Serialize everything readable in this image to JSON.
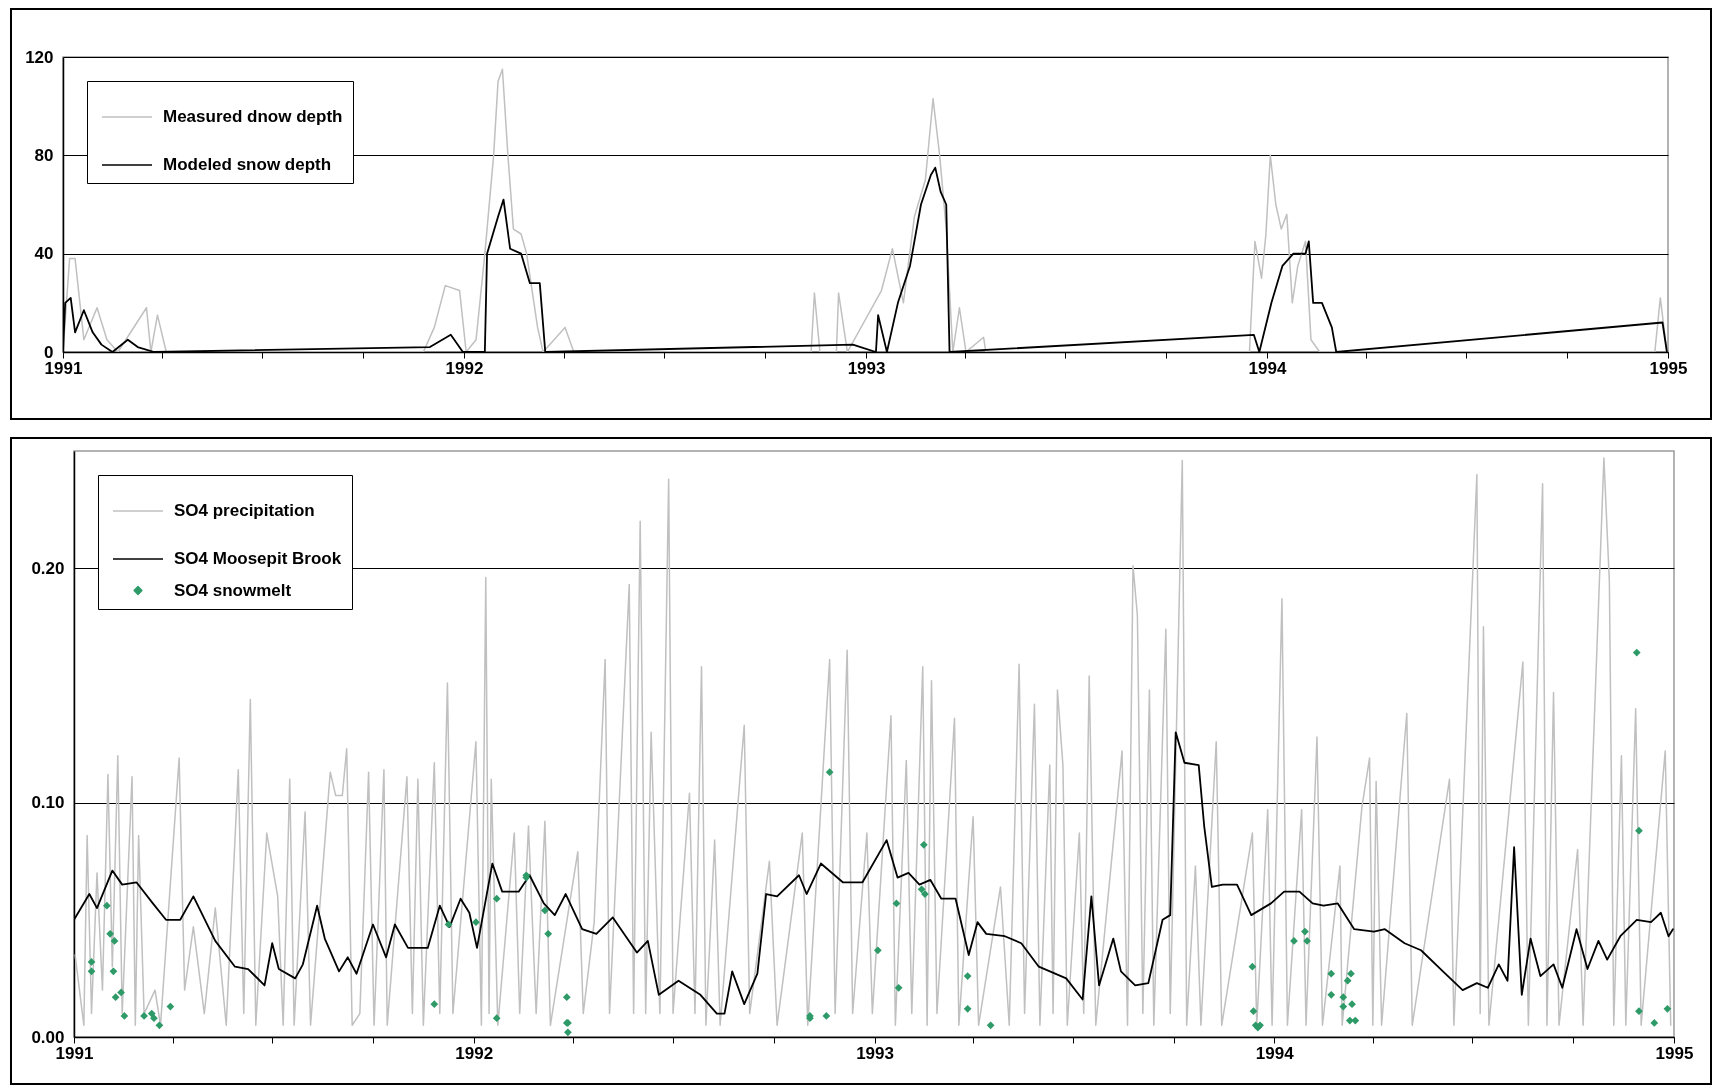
{
  "chart_data": [
    {
      "type": "line",
      "xlim": [
        "1991",
        "1995"
      ],
      "xticks": [
        "1991",
        {
          "value": "1991-04",
          "label": null
        },
        {
          "value": "1991-07",
          "label": null
        },
        {
          "value": "1991-10",
          "label": null
        },
        "1992",
        {
          "value": "1992-04",
          "label": null
        },
        {
          "value": "1992-07",
          "label": null
        },
        {
          "value": "1992-10",
          "label": null
        },
        "1993",
        {
          "value": "1993-04",
          "label": null
        },
        {
          "value": "1993-07",
          "label": null
        },
        {
          "value": "1993-10",
          "label": null
        },
        "1994",
        {
          "value": "1994-04",
          "label": null
        },
        {
          "value": "1994-07",
          "label": null
        },
        {
          "value": "1994-10",
          "label": null
        },
        "1995"
      ],
      "ylim": [
        0,
        120
      ],
      "yticks": [
        0,
        40,
        80,
        120
      ],
      "grid": "y",
      "legend": "top left",
      "series": [
        {
          "name": "Measured dnow depth",
          "color": "#c0c0c0",
          "x": [
            "1991-01-01",
            "1991-01-07",
            "1991-01-12",
            "1991-01-20",
            "1991-02-01",
            "1991-02-10",
            "1991-02-20",
            "1991-03-18",
            "1991-03-22",
            "1991-03-28",
            "1991-04-05",
            "1991-11-25",
            "1991-12-05",
            "1991-12-15",
            "1991-12-28",
            "1992-01-03",
            "1992-01-12",
            "1992-01-20",
            "1992-01-28",
            "1992-02-01",
            "1992-02-05",
            "1992-02-10",
            "1992-02-15",
            "1992-02-22",
            "1992-02-27",
            "1992-03-08",
            "1992-03-13",
            "1992-04-02",
            "1992-04-10",
            "1992-11-12",
            "1992-11-15",
            "1992-11-20",
            "1992-12-05",
            "1992-12-07",
            "1992-12-15",
            "1993-01-15",
            "1993-01-25",
            "1993-02-04",
            "1993-02-14",
            "1993-02-24",
            "1993-03-03",
            "1993-03-09",
            "1993-03-15",
            "1993-03-21",
            "1993-03-27",
            "1993-04-02",
            "1993-04-18",
            "1993-04-20",
            "1993-12-16",
            "1993-12-21",
            "1993-12-27",
            "1993-12-31",
            "1994-01-04",
            "1994-01-09",
            "1994-01-14",
            "1994-01-19",
            "1994-01-24",
            "1994-01-29",
            "1994-02-05",
            "1994-02-10",
            "1994-02-18",
            "1994-12-20",
            "1994-12-25",
            "1994-12-31"
          ],
          "values": [
            0,
            38,
            38,
            5,
            18,
            5,
            0,
            18,
            0,
            15,
            0,
            0,
            10,
            27,
            25,
            0,
            5,
            40,
            80,
            110,
            115,
            80,
            50,
            48,
            40,
            10,
            0,
            10,
            0,
            0,
            24,
            0,
            0,
            24,
            0,
            25,
            42,
            20,
            55,
            70,
            103,
            80,
            50,
            0,
            18,
            0,
            6,
            0,
            0,
            45,
            30,
            48,
            80,
            60,
            50,
            56,
            20,
            35,
            45,
            5,
            0,
            0,
            22,
            0
          ]
        },
        {
          "name": "Modeled snow depth",
          "color": "#000000",
          "x": [
            "1991-01-01",
            "1991-01-03",
            "1991-01-08",
            "1991-01-12",
            "1991-01-20",
            "1991-01-28",
            "1991-02-05",
            "1991-02-15",
            "1991-03-01",
            "1991-03-10",
            "1991-03-25",
            "1991-12-01",
            "1991-12-20",
            "1991-12-31",
            "1992-01-20",
            "1992-01-22",
            "1992-02-01",
            "1992-02-06",
            "1992-02-12",
            "1992-02-22",
            "1992-03-01",
            "1992-03-10",
            "1992-03-15",
            "1992-12-20",
            "1993-01-10",
            "1993-01-12",
            "1993-01-20",
            "1993-01-30",
            "1993-02-10",
            "1993-02-20",
            "1993-03-01",
            "1993-03-05",
            "1993-03-10",
            "1993-03-15",
            "1993-03-18",
            "1993-12-20",
            "1993-12-25",
            "1994-01-05",
            "1994-01-15",
            "1994-01-25",
            "1994-02-05",
            "1994-02-08",
            "1994-02-12",
            "1994-02-20",
            "1994-03-01",
            "1994-03-05",
            "1994-12-27",
            "1994-12-31"
          ],
          "values": [
            0,
            20,
            22,
            8,
            17,
            8,
            3,
            0,
            5,
            2,
            0,
            2,
            7,
            0,
            0,
            40,
            55,
            62,
            42,
            40,
            28,
            28,
            0,
            3,
            0,
            15,
            0,
            20,
            35,
            60,
            72,
            75,
            65,
            60,
            0,
            7,
            0,
            20,
            35,
            40,
            40,
            45,
            20,
            20,
            10,
            0,
            12,
            0
          ]
        }
      ]
    },
    {
      "type": "line",
      "xlim": [
        "1991",
        "1995"
      ],
      "xticks": [
        "1991",
        {
          "value": "1991-04",
          "label": null
        },
        {
          "value": "1991-07",
          "label": null
        },
        {
          "value": "1991-10",
          "label": null
        },
        "1992",
        {
          "value": "1992-04",
          "label": null
        },
        {
          "value": "1992-07",
          "label": null
        },
        {
          "value": "1992-10",
          "label": null
        },
        "1993",
        {
          "value": "1993-04",
          "label": null
        },
        {
          "value": "1993-07",
          "label": null
        },
        {
          "value": "1993-10",
          "label": null
        },
        "1994",
        {
          "value": "1994-04",
          "label": null
        },
        {
          "value": "1994-07",
          "label": null
        },
        {
          "value": "1994-10",
          "label": null
        },
        "1995"
      ],
      "ylim": [
        0,
        0.25
      ],
      "yticks": [
        {
          "value": 0,
          "label": "0.00"
        },
        {
          "value": 0.1,
          "label": "0.10"
        },
        {
          "value": 0.2,
          "label": "0.20"
        }
      ],
      "grid": "y",
      "legend": "top left",
      "series": [
        {
          "name": "SO4 precipitation",
          "color": "#c0c0c0",
          "x": [
            "1991-01-02",
            "1991-01-10",
            "1991-01-13",
            "1991-01-17",
            "1991-01-22",
            "1991-01-27",
            "1991-02-01",
            "1991-02-05",
            "1991-02-10",
            "1991-02-14",
            "1991-02-23",
            "1991-02-26",
            "1991-03-01",
            "1991-03-06",
            "1991-03-16",
            "1991-03-21",
            "1991-04-07",
            "1991-04-12",
            "1991-04-20",
            "1991-04-30",
            "1991-05-10",
            "1991-05-20",
            "1991-05-31",
            "1991-06-05",
            "1991-06-11",
            "1991-06-16",
            "1991-06-26",
            "1991-07-06",
            "1991-07-11",
            "1991-07-17",
            "1991-07-21",
            "1991-07-31",
            "1991-08-05",
            "1991-08-23",
            "1991-08-28",
            "1991-09-03",
            "1991-09-07",
            "1991-09-12",
            "1991-09-19",
            "1991-09-27",
            "1991-10-02",
            "1991-10-11",
            "1991-10-14",
            "1991-11-01",
            "1991-11-06",
            "1991-11-11",
            "1991-11-16",
            "1991-11-26",
            "1991-12-01",
            "1991-12-08",
            "1991-12-13",
            "1992-01-03",
            "1992-01-08",
            "1992-01-12",
            "1992-01-15",
            "1992-01-17",
            "1992-01-23",
            "1992-02-07",
            "1992-02-12",
            "1992-02-20",
            "1992-02-27",
            "1992-03-06",
            "1992-03-11",
            "1992-04-05",
            "1992-04-10",
            "1992-04-20",
            "1992-04-30",
            "1992-05-04",
            "1992-05-22",
            "1992-05-26",
            "1992-06-01",
            "1992-06-06",
            "1992-06-11",
            "1992-06-19",
            "1992-06-27",
            "1992-07-01",
            "1992-07-16",
            "1992-07-21",
            "1992-07-27",
            "1992-07-31",
            "1992-08-08",
            "1992-08-13",
            "1992-09-04",
            "1992-09-09",
            "1992-09-27",
            "1992-10-04",
            "1992-10-27",
            "1992-11-01",
            "1992-11-21",
            "1992-11-26",
            "1992-12-07",
            "1992-12-12",
            "1992-12-25",
            "1992-12-30",
            "1993-01-16",
            "1993-01-20",
            "1993-01-30",
            "1993-02-04",
            "1993-02-14",
            "1993-02-18",
            "1993-02-22",
            "1993-02-27",
            "1993-03-15",
            "1993-03-19",
            "1993-04-01",
            "1993-04-06",
            "1993-04-26",
            "1993-05-04",
            "1993-05-13",
            "1993-05-18",
            "1993-05-27",
            "1993-06-01",
            "1993-06-10",
            "1993-06-13",
            "1993-06-17",
            "1993-06-22",
            "1993-06-26",
            "1993-07-07",
            "1993-07-11",
            "1993-07-16",
            "1993-07-22",
            "1993-08-15",
            "1993-08-20",
            "1993-08-25",
            "1993-08-29",
            "1993-09-03",
            "1993-09-09",
            "1993-09-13",
            "1993-09-24",
            "1993-09-28",
            "1993-10-09",
            "1993-10-13",
            "1993-10-21",
            "1993-10-26",
            "1993-11-09",
            "1993-11-14",
            "1993-12-12",
            "1993-12-16",
            "1993-12-26",
            "1993-12-30",
            "1994-01-08",
            "1994-01-13",
            "1994-01-26",
            "1994-01-30",
            "1994-02-09",
            "1994-02-14",
            "1994-03-02",
            "1994-03-04",
            "1994-03-22",
            "1994-03-29",
            "1994-04-01",
            "1994-04-04",
            "1994-04-09",
            "1994-05-02",
            "1994-05-07",
            "1994-06-10",
            "1994-06-14",
            "1994-07-05",
            "1994-07-08",
            "1994-07-11",
            "1994-07-16",
            "1994-08-16",
            "1994-08-21",
            "1994-09-03",
            "1994-09-07",
            "1994-09-13",
            "1994-09-18",
            "1994-10-05",
            "1994-10-10",
            "1994-10-29",
            "1994-11-03",
            "1994-11-07",
            "1994-11-14",
            "1994-11-18",
            "1994-11-27",
            "1994-12-02",
            "1994-12-24",
            "1994-12-29"
          ],
          "values": [
            0.035,
            0.005,
            0.086,
            0.01,
            0.07,
            0.02,
            0.112,
            0.03,
            0.12,
            0.01,
            0.111,
            0.005,
            0.086,
            0.01,
            0.02,
            0.005,
            0.119,
            0.02,
            0.047,
            0.01,
            0.055,
            0.005,
            0.114,
            0.01,
            0.144,
            0.005,
            0.087,
            0.06,
            0.005,
            0.11,
            0.005,
            0.096,
            0.005,
            0.113,
            0.103,
            0.103,
            0.123,
            0.005,
            0.01,
            0.113,
            0.005,
            0.114,
            0.005,
            0.111,
            0.01,
            0.11,
            0.005,
            0.117,
            0.01,
            0.151,
            0.01,
            0.126,
            0.005,
            0.196,
            0.01,
            0.11,
            0.005,
            0.087,
            0.01,
            0.09,
            0.01,
            0.092,
            0.005,
            0.079,
            0.01,
            0.049,
            0.161,
            0.01,
            0.193,
            0.01,
            0.22,
            0.01,
            0.13,
            0.01,
            0.238,
            0.01,
            0.104,
            0.01,
            0.158,
            0.005,
            0.084,
            0.005,
            0.133,
            0.01,
            0.075,
            0.005,
            0.087,
            0.005,
            0.161,
            0.01,
            0.165,
            0.01,
            0.087,
            0.01,
            0.137,
            0.005,
            0.118,
            0.01,
            0.158,
            0.005,
            0.152,
            0.01,
            0.136,
            0.005,
            0.094,
            0.005,
            0.064,
            0.005,
            0.159,
            0.01,
            0.142,
            0.005,
            0.116,
            0.01,
            0.148,
            0.116,
            0.005,
            0.087,
            0.01,
            0.154,
            0.005,
            0.122,
            0.005,
            0.201,
            0.18,
            0.01,
            0.148,
            0.005,
            0.174,
            0.01,
            0.246,
            0.005,
            0.073,
            0.005,
            0.126,
            0.005,
            0.087,
            0.005,
            0.097,
            0.005,
            0.187,
            0.005,
            0.097,
            0.005,
            0.128,
            0.005,
            0.073,
            0.005,
            0.098,
            0.119,
            0.005,
            0.109,
            0.005,
            0.138,
            0.005,
            0.11,
            0.005,
            0.24,
            0.01,
            0.175,
            0.005,
            0.16,
            0.005,
            0.236,
            0.005,
            0.147,
            0.005,
            0.08,
            0.005,
            0.247,
            0.194,
            0.005,
            0.12,
            0.005,
            0.14,
            0.005,
            0.122,
            0.005
          ]
        },
        {
          "name": "SO4 Moosepit Brook",
          "color": "#000000",
          "x": [
            "1991-01-01",
            "1991-01-15",
            "1991-01-22",
            "1991-02-05",
            "1991-02-14",
            "1991-02-27",
            "1991-03-14",
            "1991-03-26",
            "1991-04-08",
            "1991-04-20",
            "1991-05-10",
            "1991-05-28",
            "1991-06-09",
            "1991-06-24",
            "1991-07-01",
            "1991-07-07",
            "1991-07-22",
            "1991-07-29",
            "1991-08-11",
            "1991-08-18",
            "1991-08-31",
            "1991-09-08",
            "1991-09-16",
            "1991-10-01",
            "1991-10-13",
            "1991-10-21",
            "1991-11-02",
            "1991-11-20",
            "1991-12-01",
            "1991-12-10",
            "1991-12-20",
            "1991-12-28",
            "1992-01-04",
            "1992-01-18",
            "1992-01-27",
            "1992-02-11",
            "1992-02-21",
            "1992-03-05",
            "1992-03-15",
            "1992-03-25",
            "1992-04-09",
            "1992-04-22",
            "1992-05-07",
            "1992-05-29",
            "1992-06-08",
            "1992-06-18",
            "1992-07-06",
            "1992-07-26",
            "1992-08-10",
            "1992-08-17",
            "1992-08-24",
            "1992-09-04",
            "1992-09-16",
            "1992-09-24",
            "1992-10-04",
            "1992-10-24",
            "1992-10-31",
            "1992-11-13",
            "1992-12-03",
            "1992-12-17",
            "1992-12-21",
            "1993-01-12",
            "1993-01-22",
            "1993-02-01",
            "1993-02-11",
            "1993-02-21",
            "1993-03-03",
            "1993-03-16",
            "1993-03-28",
            "1993-04-05",
            "1993-04-13",
            "1993-04-30",
            "1993-05-15",
            "1993-05-31",
            "1993-06-25",
            "1993-07-10",
            "1993-07-18",
            "1993-07-25",
            "1993-08-07",
            "1993-08-14",
            "1993-08-27",
            "1993-09-08",
            "1993-09-21",
            "1993-09-28",
            "1993-10-03",
            "1993-10-11",
            "1993-10-24",
            "1993-10-29",
            "1993-11-05",
            "1993-11-15",
            "1993-11-28",
            "1993-12-11",
            "1993-12-29",
            "1994-01-10",
            "1994-01-24",
            "1994-02-05",
            "1994-02-15",
            "1994-02-28",
            "1994-03-15",
            "1994-04-02",
            "1994-04-12",
            "1994-04-30",
            "1994-05-15",
            "1994-06-04",
            "1994-06-22",
            "1994-07-05",
            "1994-07-15",
            "1994-07-25",
            "1994-08-02",
            "1994-08-08",
            "1994-08-15",
            "1994-08-23",
            "1994-09-01",
            "1994-09-13",
            "1994-09-21",
            "1994-10-04",
            "1994-10-14",
            "1994-10-24",
            "1994-11-01",
            "1994-11-13",
            "1994-11-28",
            "1994-12-11",
            "1994-12-20",
            "1994-12-27",
            "1994-12-31"
          ],
          "values": [
            0.05,
            0.061,
            0.055,
            0.071,
            0.065,
            0.066,
            0.057,
            0.05,
            0.05,
            0.06,
            0.041,
            0.03,
            0.029,
            0.022,
            0.04,
            0.029,
            0.025,
            0.031,
            0.056,
            0.042,
            0.028,
            0.034,
            0.027,
            0.048,
            0.034,
            0.048,
            0.038,
            0.038,
            0.056,
            0.047,
            0.059,
            0.053,
            0.038,
            0.074,
            0.062,
            0.062,
            0.069,
            0.057,
            0.052,
            0.061,
            0.046,
            0.044,
            0.051,
            0.036,
            0.041,
            0.018,
            0.024,
            0.018,
            0.01,
            0.01,
            0.028,
            0.014,
            0.027,
            0.061,
            0.06,
            0.069,
            0.061,
            0.074,
            0.066,
            0.066,
            0.066,
            0.084,
            0.068,
            0.07,
            0.065,
            0.067,
            0.059,
            0.059,
            0.035,
            0.049,
            0.044,
            0.043,
            0.04,
            0.03,
            0.025,
            0.016,
            0.06,
            0.022,
            0.042,
            0.028,
            0.022,
            0.023,
            0.05,
            0.052,
            0.13,
            0.117,
            0.116,
            0.09,
            0.064,
            0.065,
            0.065,
            0.052,
            0.057,
            0.062,
            0.062,
            0.057,
            0.056,
            0.057,
            0.046,
            0.045,
            0.046,
            0.04,
            0.037,
            0.028,
            0.02,
            0.023,
            0.021,
            0.031,
            0.024,
            0.081,
            0.018,
            0.042,
            0.026,
            0.031,
            0.021,
            0.046,
            0.029,
            0.041,
            0.033,
            0.043,
            0.05,
            0.049,
            0.053,
            0.043,
            0.046
          ]
        },
        {
          "name": "SO4 snowmelt",
          "color": "#2e9a68",
          "type": "scatter",
          "marker": "diamond",
          "x": [
            "1991-01-31",
            "1991-01-17",
            "1991-01-17",
            "1991-02-03",
            "1991-02-07",
            "1991-02-06",
            "1991-02-08",
            "1991-02-13",
            "1991-02-16",
            "1991-03-06",
            "1991-03-13",
            "1991-03-15",
            "1991-03-20",
            "1991-03-30",
            "1991-11-26",
            "1991-12-09",
            "1992-01-03",
            "1992-01-22",
            "1992-01-22",
            "1992-02-18",
            "1992-02-18",
            "1992-03-06",
            "1992-03-09",
            "1992-03-26",
            "1992-03-27",
            "1992-03-26",
            "1992-03-27",
            "1992-11-03",
            "1992-11-03",
            "1992-11-18",
            "1992-11-21",
            "1993-01-04",
            "1993-01-21",
            "1993-01-23",
            "1993-02-15",
            "1993-02-13",
            "1993-02-16",
            "1993-03-27",
            "1993-03-27",
            "1993-04-17",
            "1993-12-12",
            "1993-12-13",
            "1993-12-15",
            "1993-12-17",
            "1993-12-19",
            "1994-01-19",
            "1994-01-29",
            "1994-01-31",
            "1994-02-22",
            "1994-02-22",
            "1994-03-05",
            "1994-03-05",
            "1994-03-09",
            "1994-03-12",
            "1994-03-13",
            "1994-03-11",
            "1994-03-16",
            "1994-11-28",
            "1994-11-30",
            "1994-11-30",
            "1994-12-14",
            "1994-12-26"
          ],
          "values": [
            0.056,
            0.032,
            0.028,
            0.044,
            0.041,
            0.028,
            0.017,
            0.019,
            0.009,
            0.009,
            0.01,
            0.008,
            0.005,
            0.013,
            0.014,
            0.048,
            0.049,
            0.059,
            0.008,
            0.069,
            0.068,
            0.054,
            0.044,
            0.017,
            0.006,
            0.006,
            0.002,
            0.008,
            0.009,
            0.009,
            0.113,
            0.037,
            0.057,
            0.021,
            0.082,
            0.063,
            0.061,
            0.026,
            0.012,
            0.005,
            0.03,
            0.011,
            0.005,
            0.004,
            0.005,
            0.041,
            0.045,
            0.041,
            0.027,
            0.018,
            0.017,
            0.013,
            0.024,
            0.027,
            0.014,
            0.007,
            0.007,
            0.164,
            0.088,
            0.011,
            0.006,
            0.012
          ]
        }
      ]
    }
  ]
}
